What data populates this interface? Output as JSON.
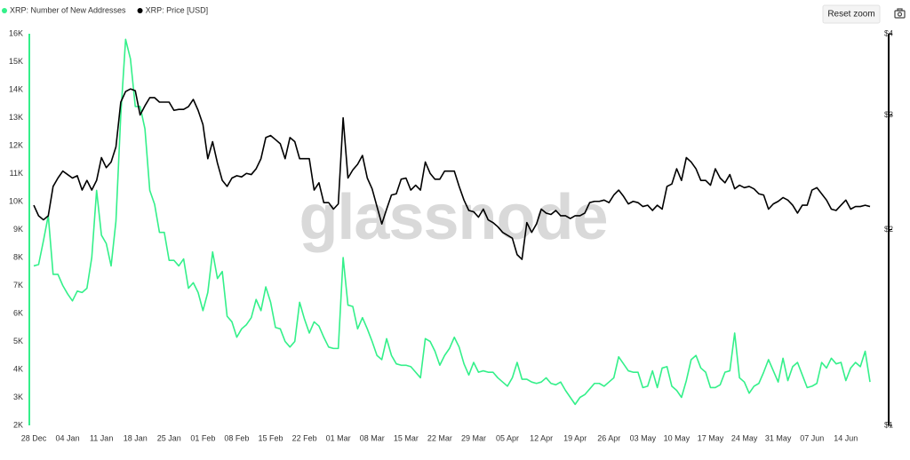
{
  "chart_data": {
    "type": "line",
    "watermark": "glassnode",
    "categories": [
      "28 Dec",
      null,
      null,
      null,
      null,
      null,
      null,
      "04 Jan",
      null,
      null,
      null,
      null,
      null,
      null,
      "11 Jan",
      null,
      null,
      null,
      null,
      null,
      null,
      "18 Jan",
      null,
      null,
      null,
      null,
      null,
      null,
      "25 Jan",
      null,
      null,
      null,
      null,
      null,
      null,
      "01 Feb",
      null,
      null,
      null,
      null,
      null,
      null,
      "08 Feb",
      null,
      null,
      null,
      null,
      null,
      null,
      "15 Feb",
      null,
      null,
      null,
      null,
      null,
      null,
      "22 Feb",
      null,
      null,
      null,
      null,
      null,
      null,
      "01 Mar",
      null,
      null,
      null,
      null,
      null,
      null,
      "08 Mar",
      null,
      null,
      null,
      null,
      null,
      null,
      "15 Mar",
      null,
      null,
      null,
      null,
      null,
      null,
      "22 Mar",
      null,
      null,
      null,
      null,
      null,
      null,
      "29 Mar",
      null,
      null,
      null,
      null,
      null,
      null,
      "05 Apr",
      null,
      null,
      null,
      null,
      null,
      null,
      "12 Apr",
      null,
      null,
      null,
      null,
      null,
      null,
      "19 Apr",
      null,
      null,
      null,
      null,
      null,
      null,
      "26 Apr",
      null,
      null,
      null,
      null,
      null,
      null,
      "03 May",
      null,
      null,
      null,
      null,
      null,
      null,
      "10 May",
      null,
      null,
      null,
      null,
      null,
      null,
      "17 May",
      null,
      null,
      null,
      null,
      null,
      null,
      "24 May",
      null,
      null,
      null,
      null,
      null,
      null,
      "31 May",
      null,
      null,
      null,
      null,
      null,
      null,
      "07 Jun",
      null,
      null,
      null,
      null,
      null,
      null,
      "14 Jun",
      null,
      null,
      null,
      null,
      null
    ],
    "series": [
      {
        "name": "XRP: Number of New Addresses",
        "color": "#34f08a",
        "axis": "y",
        "values": [
          7700,
          7750,
          8600,
          9500,
          7400,
          7400,
          7000,
          6700,
          6450,
          6800,
          6750,
          6900,
          8000,
          10400,
          8800,
          8500,
          7700,
          9300,
          13100,
          15800,
          15100,
          13400,
          13400,
          12600,
          10400,
          9900,
          8900,
          8900,
          7900,
          7900,
          7700,
          7950,
          6900,
          7100,
          6750,
          6100,
          6750,
          8200,
          7250,
          7500,
          5900,
          5700,
          5150,
          5450,
          5600,
          5850,
          6500,
          6100,
          6950,
          6400,
          5500,
          5450,
          5000,
          4800,
          5000,
          6400,
          5800,
          5300,
          5700,
          5550,
          5150,
          4800,
          4750,
          4750,
          8000,
          6300,
          6250,
          5450,
          5850,
          5450,
          5000,
          4500,
          4350,
          5100,
          4500,
          4200,
          4150,
          4150,
          4100,
          3900,
          3700,
          5100,
          5000,
          4650,
          4150,
          4500,
          4750,
          5150,
          4800,
          4200,
          3800,
          4250,
          3900,
          3950,
          3900,
          3900,
          3700,
          3550,
          3400,
          3700,
          4250,
          3650,
          3650,
          3550,
          3500,
          3550,
          3700,
          3500,
          3450,
          3550,
          3250,
          3000,
          2750,
          3000,
          3100,
          3300,
          3500,
          3500,
          3400,
          3550,
          3700,
          4450,
          4200,
          3950,
          3900,
          3900,
          3350,
          3400,
          3950,
          3350,
          4050,
          4100,
          3400,
          3250,
          3000,
          3600,
          4350,
          4500,
          4050,
          3900,
          3350,
          3350,
          3450,
          3900,
          3950,
          5300,
          3700,
          3550,
          3150,
          3400,
          3500,
          3900,
          4350,
          3950,
          3550,
          4400,
          3600,
          4100,
          4250,
          3800,
          3350,
          3400,
          3500,
          4250,
          4050,
          4400,
          4200,
          4250,
          3600,
          4050,
          4250,
          4100,
          4650,
          3550
        ]
      },
      {
        "name": "XRP: Price [USD]",
        "color": "#000000",
        "axis": "y2",
        "values": [
          2.18,
          2.1,
          2.07,
          2.1,
          2.33,
          2.4,
          2.46,
          2.43,
          2.4,
          2.42,
          2.3,
          2.38,
          2.3,
          2.38,
          2.58,
          2.49,
          2.54,
          2.68,
          3.14,
          3.26,
          3.29,
          3.27,
          3.0,
          3.1,
          3.19,
          3.19,
          3.14,
          3.14,
          3.14,
          3.05,
          3.06,
          3.06,
          3.09,
          3.17,
          3.05,
          2.9,
          2.57,
          2.73,
          2.53,
          2.38,
          2.33,
          2.4,
          2.42,
          2.41,
          2.44,
          2.43,
          2.48,
          2.57,
          2.77,
          2.79,
          2.75,
          2.71,
          2.57,
          2.77,
          2.73,
          2.57,
          2.57,
          2.57,
          2.3,
          2.36,
          2.2,
          2.2,
          2.15,
          2.19,
          2.97,
          2.4,
          2.47,
          2.52,
          2.6,
          2.4,
          2.31,
          2.17,
          2.04,
          2.15,
          2.26,
          2.27,
          2.39,
          2.4,
          2.3,
          2.34,
          2.3,
          2.54,
          2.44,
          2.39,
          2.39,
          2.46,
          2.46,
          2.46,
          2.33,
          2.22,
          2.14,
          2.13,
          2.09,
          2.15,
          2.07,
          2.05,
          2.02,
          1.98,
          1.96,
          1.94,
          1.83,
          1.8,
          2.05,
          1.98,
          2.04,
          2.15,
          2.12,
          2.11,
          2.14,
          2.1,
          2.1,
          2.08,
          2.1,
          2.1,
          2.12,
          2.2,
          2.21,
          2.21,
          2.22,
          2.2,
          2.26,
          2.3,
          2.25,
          2.19,
          2.21,
          2.2,
          2.17,
          2.18,
          2.14,
          2.18,
          2.15,
          2.33,
          2.35,
          2.48,
          2.38,
          2.58,
          2.54,
          2.48,
          2.38,
          2.38,
          2.34,
          2.48,
          2.4,
          2.36,
          2.43,
          2.31,
          2.34,
          2.32,
          2.33,
          2.31,
          2.27,
          2.26,
          2.15,
          2.19,
          2.21,
          2.24,
          2.22,
          2.18,
          2.12,
          2.18,
          2.18,
          2.3,
          2.32,
          2.27,
          2.22,
          2.15,
          2.14,
          2.18,
          2.22,
          2.15,
          2.17,
          2.17,
          2.18,
          2.17
        ]
      }
    ],
    "ylim": [
      2000,
      16000
    ],
    "yticks": [
      {
        "value": 2000,
        "label": "2K"
      },
      {
        "value": 3000,
        "label": "3K"
      },
      {
        "value": 4000,
        "label": "4K"
      },
      {
        "value": 5000,
        "label": "5K"
      },
      {
        "value": 6000,
        "label": "6K"
      },
      {
        "value": 7000,
        "label": "7K"
      },
      {
        "value": 8000,
        "label": "8K"
      },
      {
        "value": 9000,
        "label": "9K"
      },
      {
        "value": 10000,
        "label": "10K"
      },
      {
        "value": 11000,
        "label": "11K"
      },
      {
        "value": 12000,
        "label": "12K"
      },
      {
        "value": 13000,
        "label": "13K"
      },
      {
        "value": 14000,
        "label": "14K"
      },
      {
        "value": 15000,
        "label": "15K"
      },
      {
        "value": 16000,
        "label": "16K"
      }
    ],
    "y2lim": [
      1,
      4
    ],
    "y2scale": "log",
    "y2ticks": [
      {
        "value": 1,
        "label": "$1"
      },
      {
        "value": 2,
        "label": "$2"
      },
      {
        "value": 3,
        "label": "$3"
      },
      {
        "value": 4,
        "label": "$4"
      }
    ],
    "grid": false
  },
  "toolbar": {
    "reset_zoom": "Reset zoom"
  }
}
